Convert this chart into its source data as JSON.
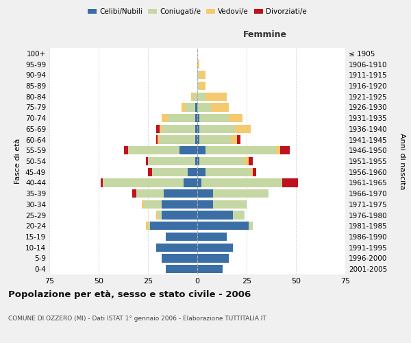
{
  "age_groups": [
    "0-4",
    "5-9",
    "10-14",
    "15-19",
    "20-24",
    "25-29",
    "30-34",
    "35-39",
    "40-44",
    "45-49",
    "50-54",
    "55-59",
    "60-64",
    "65-69",
    "70-74",
    "75-79",
    "80-84",
    "85-89",
    "90-94",
    "95-99",
    "100+"
  ],
  "birth_years": [
    "2001-2005",
    "1996-2000",
    "1991-1995",
    "1986-1990",
    "1981-1985",
    "1976-1980",
    "1971-1975",
    "1966-1970",
    "1961-1965",
    "1956-1960",
    "1951-1955",
    "1946-1950",
    "1941-1945",
    "1936-1940",
    "1931-1935",
    "1926-1930",
    "1921-1925",
    "1916-1920",
    "1911-1915",
    "1906-1910",
    "≤ 1905"
  ],
  "male": {
    "celibe": [
      16,
      18,
      21,
      16,
      24,
      18,
      18,
      17,
      7,
      5,
      1,
      9,
      1,
      1,
      1,
      1,
      0,
      0,
      0,
      0,
      0
    ],
    "coniugato": [
      0,
      0,
      0,
      0,
      1,
      2,
      9,
      14,
      41,
      18,
      24,
      26,
      18,
      17,
      14,
      5,
      2,
      0,
      0,
      0,
      0
    ],
    "vedovo": [
      0,
      0,
      0,
      0,
      1,
      1,
      1,
      0,
      0,
      0,
      0,
      0,
      1,
      1,
      3,
      2,
      1,
      0,
      0,
      0,
      0
    ],
    "divorziato": [
      0,
      0,
      0,
      0,
      0,
      0,
      0,
      2,
      1,
      2,
      1,
      2,
      1,
      2,
      0,
      0,
      0,
      0,
      0,
      0,
      0
    ]
  },
  "female": {
    "nubile": [
      13,
      16,
      18,
      15,
      26,
      18,
      8,
      8,
      2,
      4,
      1,
      4,
      1,
      1,
      1,
      0,
      0,
      0,
      0,
      0,
      0
    ],
    "coniugata": [
      0,
      0,
      0,
      0,
      2,
      6,
      17,
      28,
      41,
      23,
      23,
      36,
      16,
      18,
      15,
      7,
      4,
      1,
      1,
      0,
      0
    ],
    "vedova": [
      0,
      0,
      0,
      0,
      0,
      0,
      0,
      0,
      0,
      1,
      2,
      2,
      3,
      8,
      7,
      9,
      11,
      3,
      3,
      1,
      0
    ],
    "divorziata": [
      0,
      0,
      0,
      0,
      0,
      0,
      0,
      0,
      8,
      2,
      2,
      5,
      2,
      0,
      0,
      0,
      0,
      0,
      0,
      0,
      0
    ]
  },
  "color_celibe": "#3a6ea5",
  "color_coniugato": "#c5d8a4",
  "color_vedovo": "#f5c96e",
  "color_divorziato": "#c0111e",
  "xlim": 75,
  "title": "Popolazione per età, sesso e stato civile - 2006",
  "subtitle": "COMUNE DI OZZERO (MI) - Dati ISTAT 1° gennaio 2006 - Elaborazione TUTTITALIA.IT",
  "ylabel_left": "Fasce di età",
  "ylabel_right": "Anni di nascita",
  "xlabel_right": "Femmine",
  "bg_color": "#f0f0f0",
  "plot_bg": "#ffffff",
  "grid_color": "#cccccc"
}
